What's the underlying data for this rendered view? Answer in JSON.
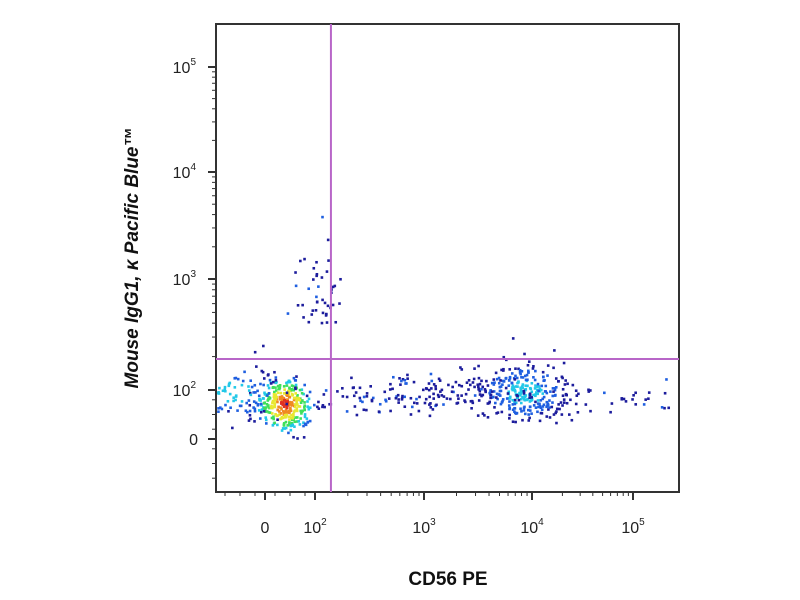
{
  "chart_data": {
    "type": "scatter",
    "subtype": "flow-cytometry density dot plot (pseudocolor)",
    "xlabel": "CD56 PE",
    "ylabel": "Mouse IgG1, κ Pacific Blue™",
    "x_scale": "biexponential (log above 10^2, linear around 0)",
    "y_scale": "biexponential (log above 10^2, linear around 0)",
    "xlim": [
      -100,
      250000
    ],
    "ylim": [
      -100,
      250000
    ],
    "x_ticks": [
      {
        "value": 0,
        "base": "0",
        "exp": ""
      },
      {
        "value": 100,
        "base": "10",
        "exp": "2"
      },
      {
        "value": 1000,
        "base": "10",
        "exp": "3"
      },
      {
        "value": 10000,
        "base": "10",
        "exp": "4"
      },
      {
        "value": 100000,
        "base": "10",
        "exp": "5"
      }
    ],
    "y_ticks": [
      {
        "value": 0,
        "base": "0",
        "exp": ""
      },
      {
        "value": 100,
        "base": "10",
        "exp": "2"
      },
      {
        "value": 1000,
        "base": "10",
        "exp": "3"
      },
      {
        "value": 10000,
        "base": "10",
        "exp": "4"
      },
      {
        "value": 100000,
        "base": "10",
        "exp": "5"
      }
    ],
    "gates": {
      "x": 140,
      "y": 190,
      "color": "#b866c8"
    },
    "grid": false,
    "legend": "none",
    "colormap": [
      "#1c1c9c",
      "#1f5fe0",
      "#22c8e8",
      "#3ee05a",
      "#e8e830",
      "#f08a20",
      "#e03020"
    ],
    "populations": [
      {
        "x": 40,
        "y": 70,
        "count": 320,
        "density": "high"
      },
      {
        "x": -60,
        "y": 95,
        "count": 90,
        "density": "medium"
      },
      {
        "x": 8500,
        "y": 95,
        "count": 300,
        "density": "medium"
      },
      {
        "x": 900,
        "y": 90,
        "count": 160,
        "density": "low"
      },
      {
        "x": 60000,
        "y": 85,
        "count": 45,
        "density": "low"
      },
      {
        "x": 110,
        "y": 400,
        "count": 45,
        "density": "sparse"
      }
    ]
  }
}
